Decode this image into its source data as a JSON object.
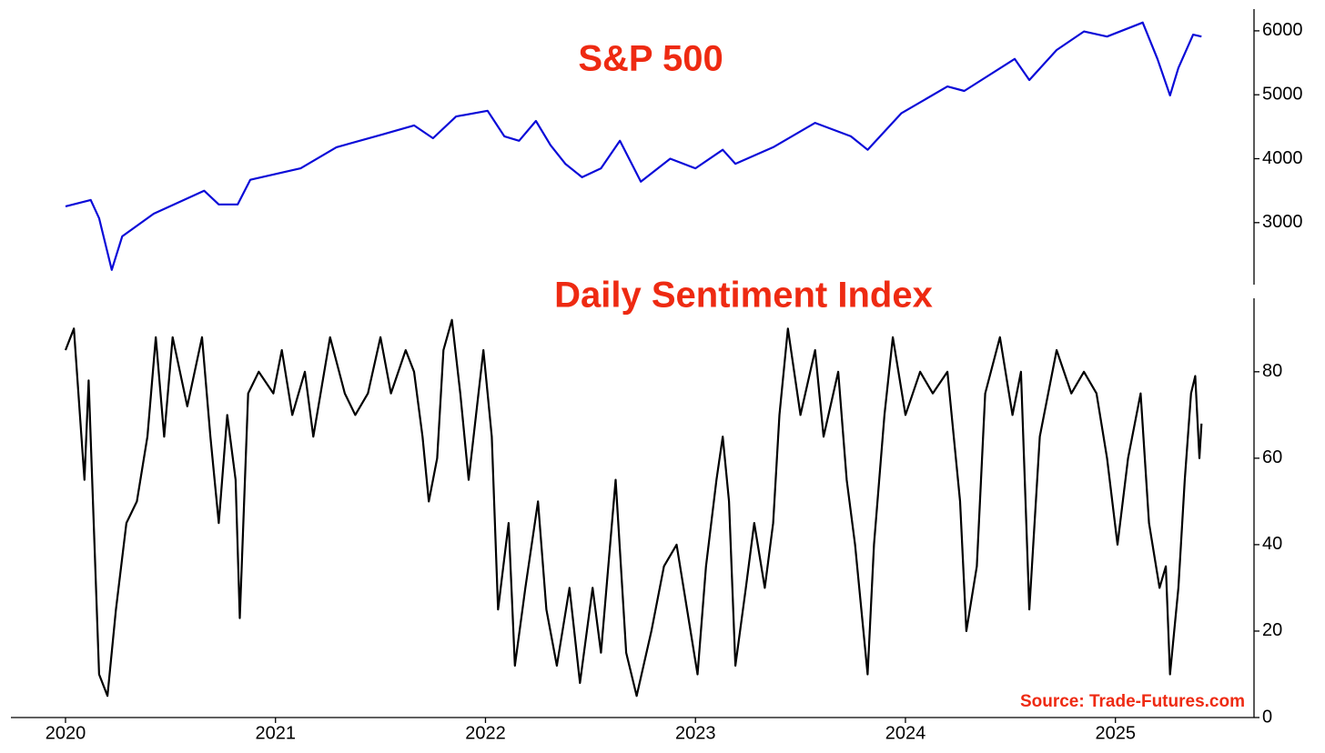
{
  "chart_data": [
    {
      "type": "line",
      "title": "S&P 500",
      "color": "#0a0ad8",
      "x": [
        2020.0,
        2020.12,
        2020.16,
        2020.22,
        2020.27,
        2020.42,
        2020.66,
        2020.73,
        2020.82,
        2020.88,
        2021.12,
        2021.29,
        2021.51,
        2021.66,
        2021.75,
        2021.86,
        2022.01,
        2022.09,
        2022.16,
        2022.24,
        2022.31,
        2022.38,
        2022.46,
        2022.55,
        2022.64,
        2022.74,
        2022.88,
        2023.0,
        2023.13,
        2023.19,
        2023.37,
        2023.57,
        2023.74,
        2023.82,
        2023.98,
        2024.2,
        2024.28,
        2024.52,
        2024.59,
        2024.72,
        2024.85,
        2024.96,
        2025.13,
        2025.2,
        2025.26,
        2025.3,
        2025.37,
        2025.41
      ],
      "values": [
        3255,
        3355,
        3070,
        2260,
        2785,
        3140,
        3500,
        3285,
        3285,
        3670,
        3850,
        4180,
        4380,
        4520,
        4320,
        4660,
        4750,
        4350,
        4280,
        4590,
        4210,
        3920,
        3710,
        3850,
        4280,
        3640,
        4000,
        3850,
        4140,
        3920,
        4180,
        4560,
        4350,
        4140,
        4710,
        5130,
        5060,
        5560,
        5230,
        5700,
        5990,
        5910,
        6130,
        5560,
        4990,
        5420,
        5940,
        5910
      ],
      "xlim": [
        2019.74,
        2025.66
      ],
      "ylim": [
        2030,
        6340
      ],
      "yticks": [
        3000,
        4000,
        5000,
        6000
      ]
    },
    {
      "type": "line",
      "title": "Daily Sentiment Index",
      "color": "#000000",
      "annotation": "Source: Trade-Futures.com",
      "x": [
        2020.0,
        2020.04,
        2020.09,
        2020.11,
        2020.16,
        2020.2,
        2020.24,
        2020.29,
        2020.34,
        2020.39,
        2020.43,
        2020.47,
        2020.51,
        2020.58,
        2020.65,
        2020.69,
        2020.73,
        2020.77,
        2020.81,
        2020.83,
        2020.87,
        2020.92,
        2020.99,
        2021.03,
        2021.08,
        2021.14,
        2021.18,
        2021.26,
        2021.33,
        2021.38,
        2021.44,
        2021.5,
        2021.55,
        2021.62,
        2021.66,
        2021.7,
        2021.73,
        2021.77,
        2021.8,
        2021.84,
        2021.88,
        2021.92,
        2021.99,
        2022.03,
        2022.06,
        2022.11,
        2022.14,
        2022.19,
        2022.25,
        2022.29,
        2022.34,
        2022.4,
        2022.45,
        2022.51,
        2022.55,
        2022.62,
        2022.67,
        2022.72,
        2022.79,
        2022.85,
        2022.91,
        2022.96,
        2023.01,
        2023.05,
        2023.1,
        2023.13,
        2023.16,
        2023.19,
        2023.24,
        2023.28,
        2023.33,
        2023.37,
        2023.4,
        2023.44,
        2023.5,
        2023.57,
        2023.61,
        2023.68,
        2023.72,
        2023.76,
        2023.82,
        2023.85,
        2023.9,
        2023.94,
        2024.0,
        2024.07,
        2024.13,
        2024.2,
        2024.26,
        2024.29,
        2024.34,
        2024.38,
        2024.45,
        2024.51,
        2024.55,
        2024.59,
        2024.64,
        2024.72,
        2024.79,
        2024.85,
        2024.91,
        2024.96,
        2025.01,
        2025.06,
        2025.12,
        2025.16,
        2025.21,
        2025.24,
        2025.26,
        2025.3,
        2025.33,
        2025.36,
        2025.38,
        2025.4,
        2025.41
      ],
      "values": [
        85,
        90,
        55,
        78,
        10,
        5,
        25,
        45,
        50,
        65,
        88,
        65,
        88,
        72,
        88,
        65,
        45,
        70,
        55,
        23,
        75,
        80,
        75,
        85,
        70,
        80,
        65,
        88,
        75,
        70,
        75,
        88,
        75,
        85,
        80,
        65,
        50,
        60,
        85,
        92,
        75,
        55,
        85,
        65,
        25,
        45,
        12,
        30,
        50,
        25,
        12,
        30,
        8,
        30,
        15,
        55,
        15,
        5,
        20,
        35,
        40,
        25,
        10,
        35,
        55,
        65,
        50,
        12,
        30,
        45,
        30,
        45,
        70,
        90,
        70,
        85,
        65,
        80,
        55,
        40,
        10,
        40,
        70,
        88,
        70,
        80,
        75,
        80,
        50,
        20,
        35,
        75,
        88,
        70,
        80,
        25,
        65,
        85,
        75,
        80,
        75,
        60,
        40,
        60,
        75,
        45,
        30,
        35,
        10,
        30,
        55,
        75,
        79,
        60,
        68
      ],
      "xlim": [
        2019.74,
        2025.66
      ],
      "ylim": [
        0,
        97
      ],
      "yticks": [
        0,
        20,
        40,
        60,
        80
      ],
      "xticks": [
        2020,
        2021,
        2022,
        2023,
        2024,
        2025
      ]
    }
  ]
}
